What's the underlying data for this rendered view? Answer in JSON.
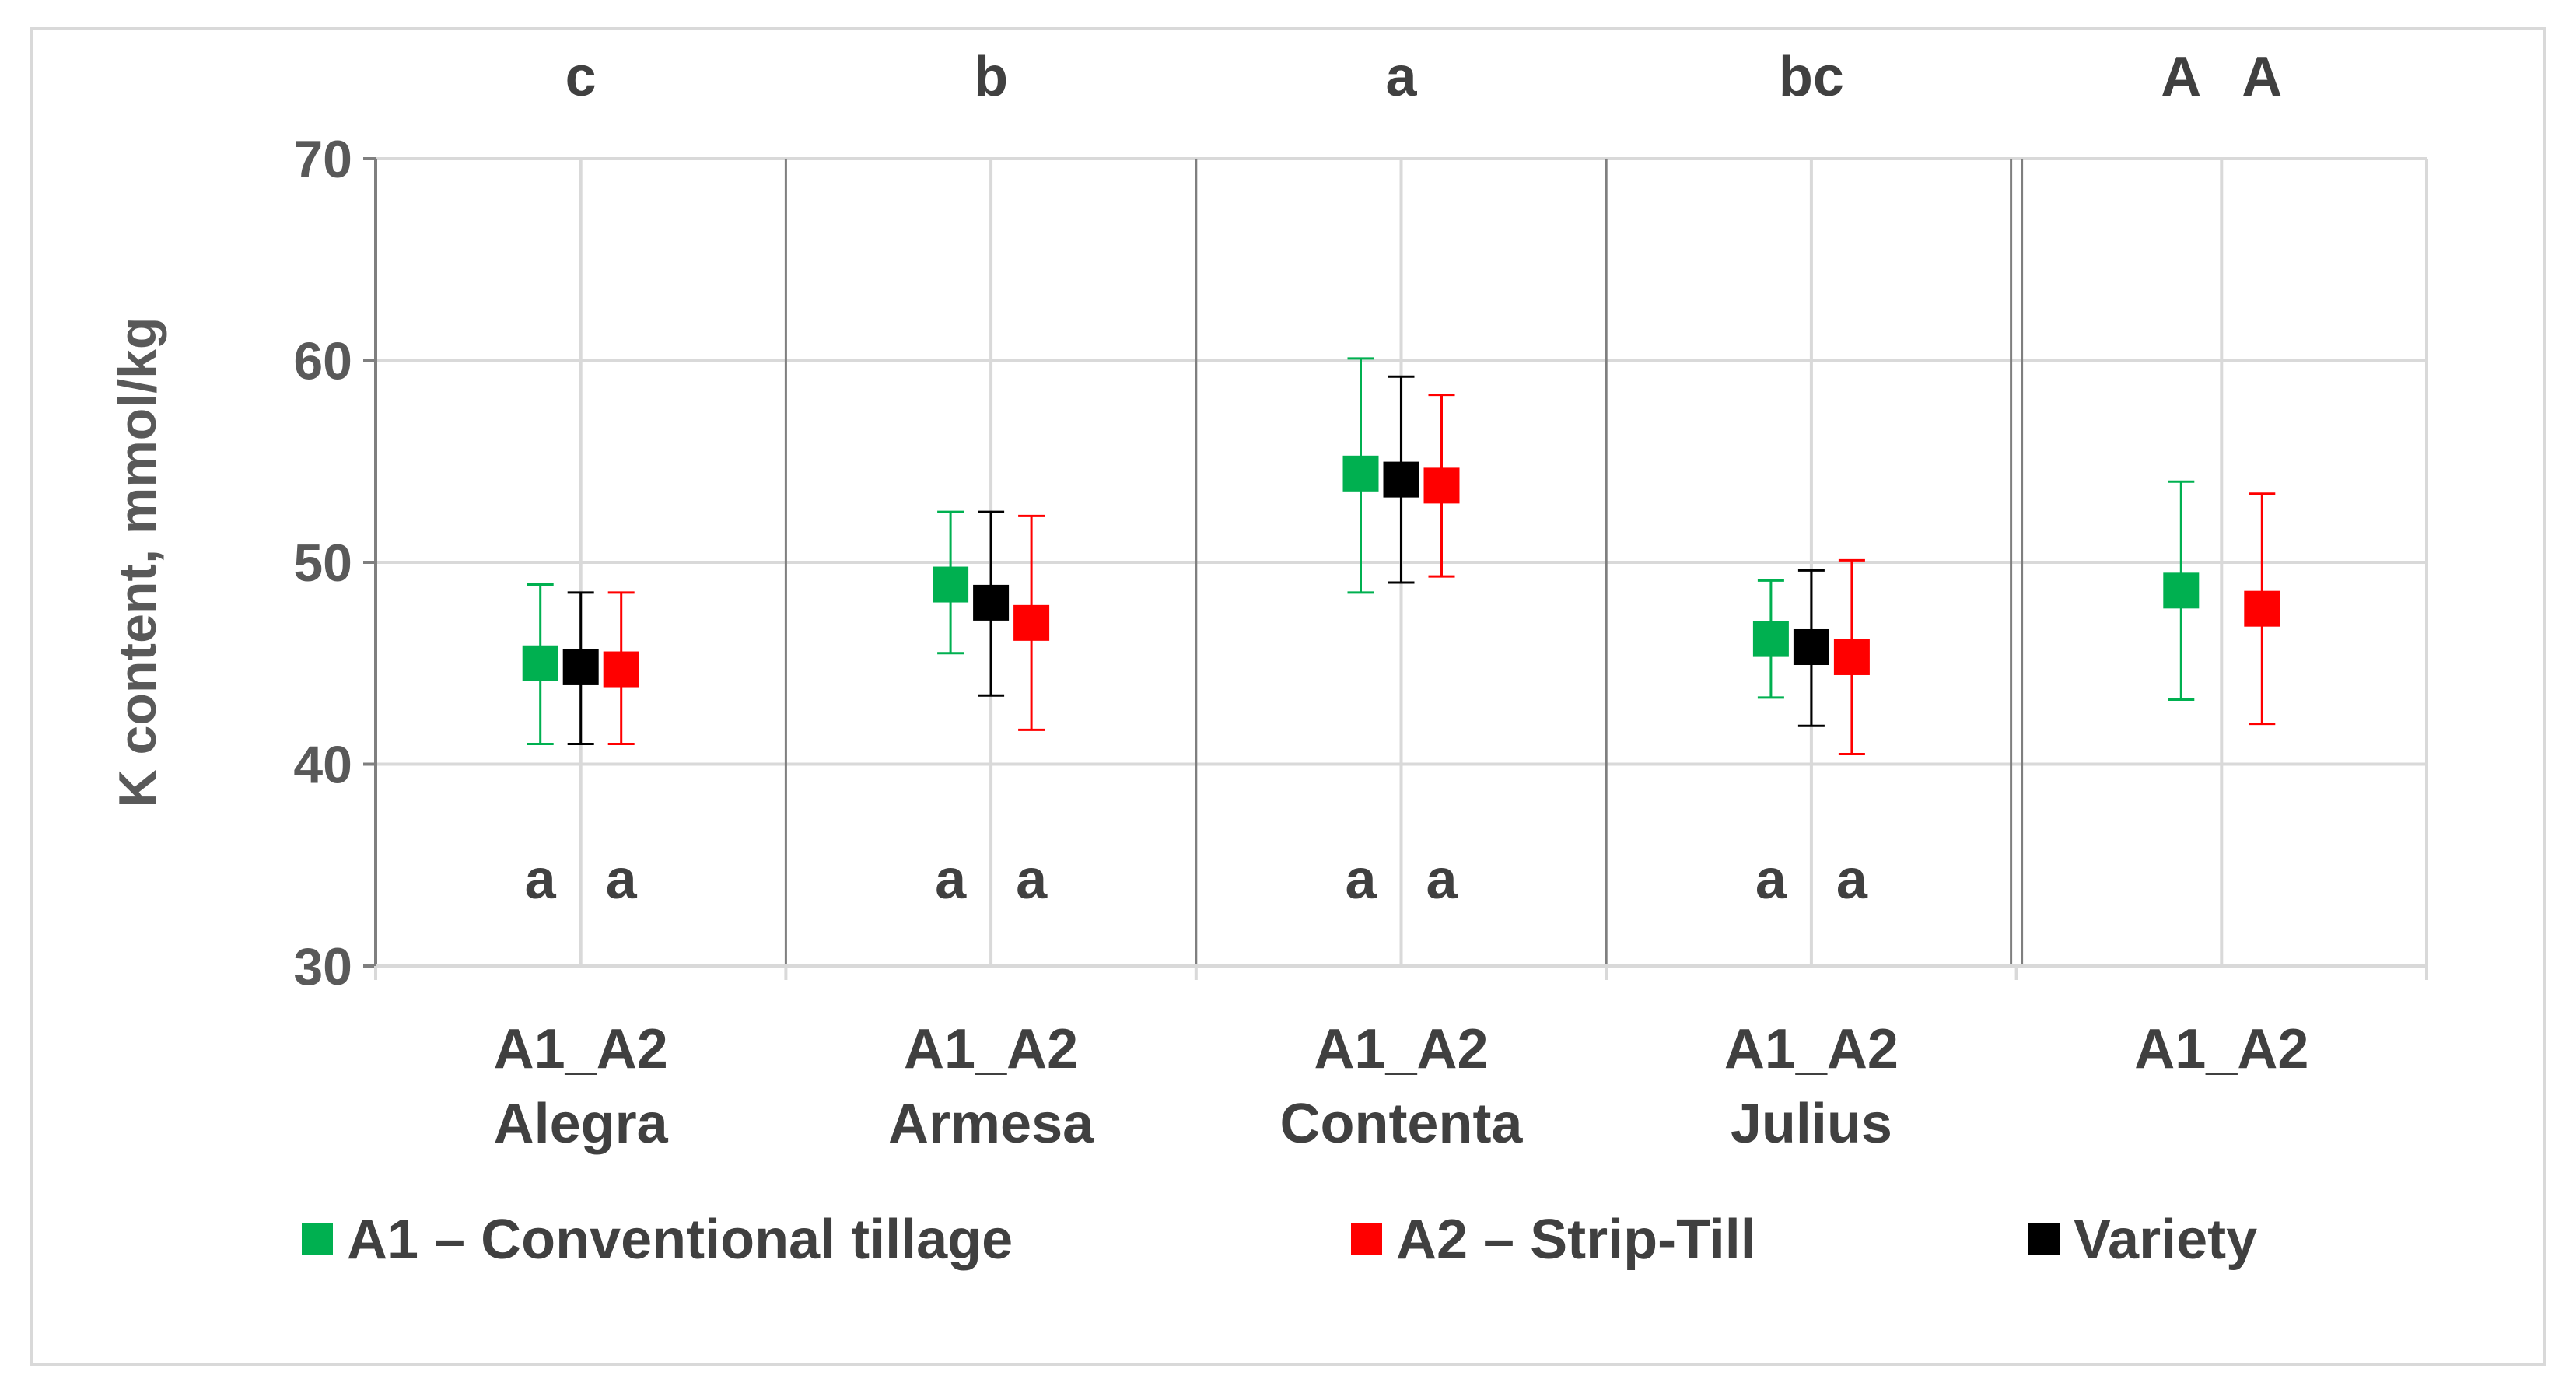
{
  "chart_data": {
    "type": "scatter",
    "ylabel": "K content, mmol/kg",
    "ylim": [
      30,
      70
    ],
    "yticks": [
      "30",
      "40",
      "50",
      "60",
      "70"
    ],
    "grid": true,
    "groups": [
      {
        "axis_label_line1": "A1_A2",
        "axis_label_line2": "Alegra",
        "top_letter": "c",
        "bottom_letters": [
          "a",
          "a"
        ]
      },
      {
        "axis_label_line1": "A1_A2",
        "axis_label_line2": "Armesa",
        "top_letter": "b",
        "bottom_letters": [
          "a",
          "a"
        ]
      },
      {
        "axis_label_line1": "A1_A2",
        "axis_label_line2": "Contenta",
        "top_letter": "a",
        "bottom_letters": [
          "a",
          "a"
        ]
      },
      {
        "axis_label_line1": "A1_A2",
        "axis_label_line2": "Julius",
        "top_letter": "bc",
        "bottom_letters": [
          "a",
          "a"
        ]
      },
      {
        "axis_label_line1": "A1_A2",
        "axis_label_line2": "",
        "top_letters": [
          "A",
          "A"
        ]
      }
    ],
    "series": [
      {
        "name": "A1 – Conventional tillage",
        "color": "#00b050",
        "points": [
          {
            "group": 0,
            "value": 45.0,
            "low": 41.0,
            "high": 48.9
          },
          {
            "group": 1,
            "value": 48.9,
            "low": 45.5,
            "high": 52.5
          },
          {
            "group": 2,
            "value": 54.4,
            "low": 48.5,
            "high": 60.1
          },
          {
            "group": 3,
            "value": 46.2,
            "low": 43.3,
            "high": 49.1
          },
          {
            "group": 4,
            "value": 48.6,
            "low": 43.2,
            "high": 54.0
          }
        ]
      },
      {
        "name": "A2 – Strip-Till",
        "color": "#ff0000",
        "points": [
          {
            "group": 0,
            "value": 44.7,
            "low": 41.0,
            "high": 48.5
          },
          {
            "group": 1,
            "value": 47.0,
            "low": 41.7,
            "high": 52.3
          },
          {
            "group": 2,
            "value": 53.8,
            "low": 49.3,
            "high": 58.3
          },
          {
            "group": 3,
            "value": 45.3,
            "low": 40.5,
            "high": 50.1
          },
          {
            "group": 4,
            "value": 47.7,
            "low": 42.0,
            "high": 53.4
          }
        ]
      },
      {
        "name": "Variety",
        "color": "#000000",
        "points": [
          {
            "group": 0,
            "value": 44.8,
            "low": 41.0,
            "high": 48.5
          },
          {
            "group": 1,
            "value": 48.0,
            "low": 43.4,
            "high": 52.5
          },
          {
            "group": 2,
            "value": 54.1,
            "low": 49.0,
            "high": 59.2
          },
          {
            "group": 3,
            "value": 45.8,
            "low": 41.9,
            "high": 49.6
          }
        ]
      }
    ],
    "legend": {
      "position": "bottom"
    }
  }
}
